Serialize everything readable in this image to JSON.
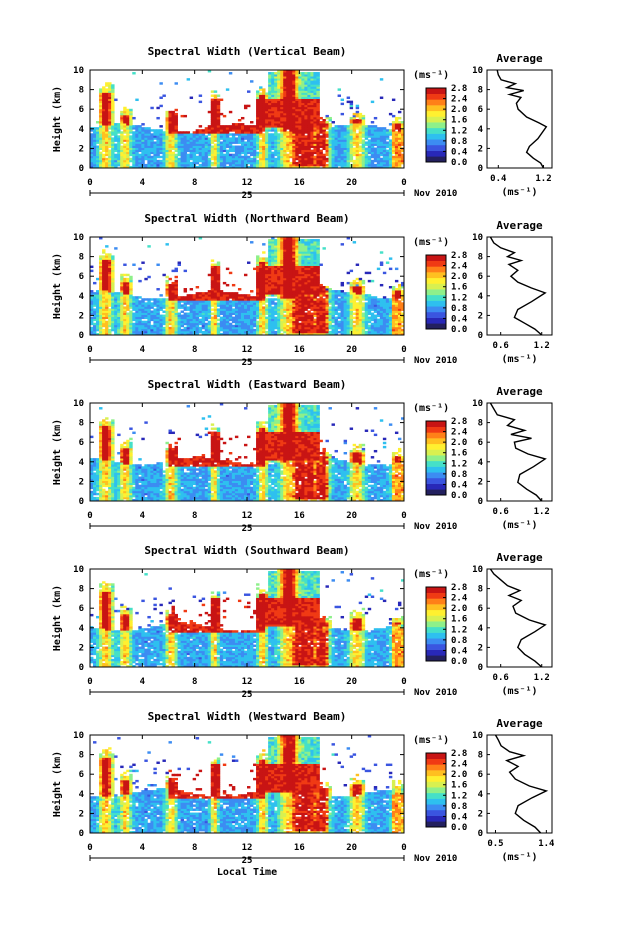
{
  "figure": {
    "xlabel": "Local Time",
    "date_label": "Nov 2010",
    "day_label": "25"
  },
  "colorbar": {
    "unit": "(ms⁻¹)",
    "ticks": [
      "0.0",
      "0.4",
      "0.8",
      "1.2",
      "1.6",
      "2.0",
      "2.4",
      "2.8"
    ],
    "colors": [
      "#23205f",
      "#2828b8",
      "#3a55e0",
      "#3c8cf2",
      "#2ec0ef",
      "#45e0c8",
      "#8ef08a",
      "#d8f050",
      "#fff030",
      "#ffc020",
      "#ff8018",
      "#f03a14",
      "#c81414"
    ]
  },
  "chart_data": [
    {
      "type": "heatmap",
      "title": "Spectral Width (Vertical Beam)",
      "ylabel": "Height (km)",
      "x_ticks": [
        "0",
        "4",
        "8",
        "12",
        "16",
        "20",
        "0"
      ],
      "y_ticks": [
        "0",
        "2",
        "4",
        "6",
        "8",
        "10"
      ],
      "xlim": [
        0,
        24
      ],
      "ylim": [
        0,
        10
      ],
      "clim": [
        0.0,
        2.8
      ],
      "profile": {
        "title": "Average",
        "xlabel": "(ms⁻¹)",
        "x_ticks": [
          "0.4",
          "1.2"
        ],
        "xlim": [
          0.2,
          1.35
        ],
        "points": [
          [
            1.2,
            0
          ],
          [
            1.15,
            0.5
          ],
          [
            1.02,
            1
          ],
          [
            0.9,
            1.6
          ],
          [
            0.95,
            2.2
          ],
          [
            1.1,
            3
          ],
          [
            1.25,
            4.2
          ],
          [
            1.12,
            4.6
          ],
          [
            0.9,
            5.2
          ],
          [
            0.75,
            6
          ],
          [
            0.72,
            6.6
          ],
          [
            0.8,
            7.2
          ],
          [
            0.6,
            7.5
          ],
          [
            0.85,
            7.9
          ],
          [
            0.55,
            8.2
          ],
          [
            0.7,
            8.6
          ],
          [
            0.45,
            9
          ],
          [
            0.4,
            9.5
          ],
          [
            0.38,
            10
          ]
        ]
      }
    },
    {
      "type": "heatmap",
      "title": "Spectral Width (Northward Beam)",
      "ylabel": "Height (km)",
      "x_ticks": [
        "0",
        "4",
        "8",
        "12",
        "16",
        "20",
        "0"
      ],
      "y_ticks": [
        "0",
        "2",
        "4",
        "6",
        "8",
        "10"
      ],
      "xlim": [
        0,
        24
      ],
      "ylim": [
        0,
        10
      ],
      "clim": [
        0.0,
        2.8
      ],
      "profile": {
        "title": "Average",
        "xlabel": "(ms⁻¹)",
        "x_ticks": [
          "0.6",
          "1.2"
        ],
        "xlim": [
          0.4,
          1.35
        ],
        "points": [
          [
            1.2,
            0
          ],
          [
            1.1,
            0.6
          ],
          [
            0.95,
            1.2
          ],
          [
            0.8,
            1.8
          ],
          [
            0.85,
            2.6
          ],
          [
            1.05,
            3.4
          ],
          [
            1.25,
            4.3
          ],
          [
            1.05,
            4.8
          ],
          [
            0.85,
            5.4
          ],
          [
            0.75,
            6
          ],
          [
            0.85,
            6.6
          ],
          [
            0.72,
            7.2
          ],
          [
            0.9,
            7.6
          ],
          [
            0.7,
            8
          ],
          [
            0.8,
            8.4
          ],
          [
            0.6,
            8.9
          ],
          [
            0.5,
            9.4
          ],
          [
            0.45,
            10
          ]
        ]
      }
    },
    {
      "type": "heatmap",
      "title": "Spectral Width (Eastward Beam)",
      "ylabel": "Height (km)",
      "x_ticks": [
        "0",
        "4",
        "8",
        "12",
        "16",
        "20",
        "0"
      ],
      "y_ticks": [
        "0",
        "2",
        "4",
        "6",
        "8",
        "10"
      ],
      "xlim": [
        0,
        24
      ],
      "ylim": [
        0,
        10
      ],
      "clim": [
        0.0,
        2.8
      ],
      "profile": {
        "title": "Average",
        "xlabel": "(ms⁻¹)",
        "x_ticks": [
          "0.6",
          "1.2"
        ],
        "xlim": [
          0.4,
          1.35
        ],
        "points": [
          [
            1.2,
            0
          ],
          [
            1.12,
            0.6
          ],
          [
            0.98,
            1.2
          ],
          [
            0.85,
            1.9
          ],
          [
            0.88,
            2.7
          ],
          [
            1.08,
            3.5
          ],
          [
            1.25,
            4.3
          ],
          [
            1.0,
            4.8
          ],
          [
            0.82,
            5.4
          ],
          [
            0.8,
            6
          ],
          [
            1.05,
            6.4
          ],
          [
            0.75,
            6.8
          ],
          [
            0.95,
            7.2
          ],
          [
            0.7,
            7.7
          ],
          [
            0.8,
            8.3
          ],
          [
            0.55,
            8.8
          ],
          [
            0.5,
            9.4
          ],
          [
            0.45,
            10
          ]
        ]
      }
    },
    {
      "type": "heatmap",
      "title": "Spectral Width (Southward Beam)",
      "ylabel": "Height (km)",
      "x_ticks": [
        "0",
        "4",
        "8",
        "12",
        "16",
        "20",
        "0"
      ],
      "y_ticks": [
        "0",
        "2",
        "4",
        "6",
        "8",
        "10"
      ],
      "xlim": [
        0,
        24
      ],
      "ylim": [
        0,
        10
      ],
      "clim": [
        0.0,
        2.8
      ],
      "profile": {
        "title": "Average",
        "xlabel": "(ms⁻¹)",
        "x_ticks": [
          "0.6",
          "1.2"
        ],
        "xlim": [
          0.4,
          1.35
        ],
        "points": [
          [
            1.2,
            0
          ],
          [
            1.1,
            0.6
          ],
          [
            0.95,
            1.3
          ],
          [
            0.85,
            2
          ],
          [
            0.9,
            2.8
          ],
          [
            1.1,
            3.6
          ],
          [
            1.25,
            4.3
          ],
          [
            1.02,
            4.8
          ],
          [
            0.82,
            5.5
          ],
          [
            0.78,
            6.2
          ],
          [
            0.9,
            6.8
          ],
          [
            0.72,
            7.3
          ],
          [
            0.88,
            7.8
          ],
          [
            0.7,
            8.3
          ],
          [
            0.6,
            8.9
          ],
          [
            0.5,
            9.5
          ],
          [
            0.45,
            10
          ]
        ]
      }
    },
    {
      "type": "heatmap",
      "title": "Spectral Width (Westward Beam)",
      "ylabel": "Height (km)",
      "x_ticks": [
        "0",
        "4",
        "8",
        "12",
        "16",
        "20",
        "0"
      ],
      "y_ticks": [
        "0",
        "2",
        "4",
        "6",
        "8",
        "10"
      ],
      "xlim": [
        0,
        24
      ],
      "ylim": [
        0,
        10
      ],
      "clim": [
        0.0,
        2.8
      ],
      "profile": {
        "title": "Average",
        "xlabel": "(ms⁻¹)",
        "x_ticks": [
          "0.5",
          "1.4"
        ],
        "xlim": [
          0.35,
          1.5
        ],
        "points": [
          [
            1.3,
            0
          ],
          [
            1.2,
            0.6
          ],
          [
            1.0,
            1.3
          ],
          [
            0.85,
            2
          ],
          [
            0.9,
            2.8
          ],
          [
            1.15,
            3.6
          ],
          [
            1.4,
            4.3
          ],
          [
            1.1,
            4.8
          ],
          [
            0.85,
            5.5
          ],
          [
            0.75,
            6.2
          ],
          [
            0.9,
            6.8
          ],
          [
            0.7,
            7.4
          ],
          [
            1.0,
            7.9
          ],
          [
            0.75,
            8.3
          ],
          [
            0.6,
            8.9
          ],
          [
            0.55,
            9.5
          ],
          [
            0.5,
            10
          ]
        ]
      }
    }
  ]
}
